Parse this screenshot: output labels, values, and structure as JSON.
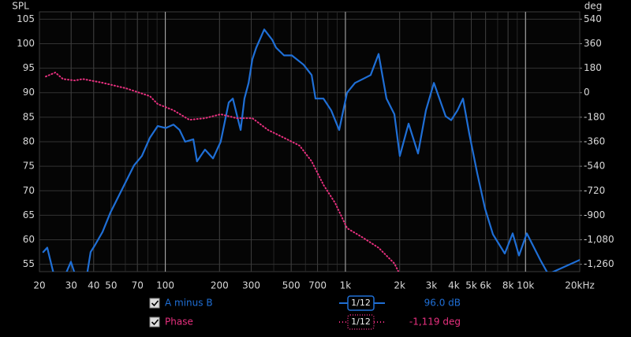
{
  "chart_data": {
    "type": "line",
    "xscale": "log",
    "ylabel": "SPL",
    "y2label": "deg",
    "xlim": [
      20,
      20000
    ],
    "ylim": [
      53.5,
      106.5
    ],
    "y2lim": [
      -1314,
      594
    ],
    "xticks": [
      20,
      30,
      40,
      50,
      70,
      100,
      200,
      300,
      500,
      700,
      {
        "value": 1000,
        "label": "1k"
      },
      {
        "value": 2000,
        "label": "2k"
      },
      {
        "value": 3000,
        "label": "3k"
      },
      {
        "value": 4000,
        "label": "4k"
      },
      {
        "value": 5000,
        "label": "5k"
      },
      {
        "value": 6000,
        "label": "6k"
      },
      {
        "value": 8000,
        "label": "8k"
      },
      {
        "value": 10000,
        "label": "10k"
      },
      {
        "value": 20000,
        "label": "20kHz"
      }
    ],
    "major_x": [
      100,
      1000,
      10000
    ],
    "yticks": [
      55,
      60,
      65,
      70,
      75,
      80,
      85,
      90,
      95,
      100,
      105
    ],
    "y2ticks": [
      540,
      360,
      180,
      0,
      -180,
      -360,
      -540,
      -720,
      -900,
      {
        "value": -1080,
        "label": "-1,080"
      },
      {
        "value": -1260,
        "label": "-1,260"
      }
    ],
    "grid": true,
    "series": [
      {
        "name": "A minus B",
        "color": "#1f6fd6",
        "smoothing": "1/12",
        "readout": "96.0 dB",
        "x": [
          21.0,
          22.1,
          24.0,
          27.6,
          29.9,
          31.5,
          36.6,
          38.5,
          40.5,
          44.8,
          49.6,
          57.7,
          67.1,
          74.1,
          82.1,
          90.7,
          100.4,
          111,
          120,
          129,
          143,
          150,
          166,
          184,
          203,
          225,
          237,
          249,
          262,
          275,
          290,
          304,
          320,
          354,
          392,
          412,
          456,
          504,
          586,
          649,
          682,
          755,
          834,
          923,
          1021,
          1130,
          1250,
          1381,
          1528,
          1691,
          1870,
          2005,
          2243,
          2530,
          2800,
          3098,
          3600,
          3865,
          4190,
          4497,
          4875,
          5392,
          5960,
          6595,
          7670,
          8485,
          9200,
          10170,
          12080,
          13360,
          20000
        ],
        "values": [
          57.5,
          58.4,
          53.0,
          52.5,
          55.5,
          53.0,
          52.5,
          57.5,
          58.8,
          61.6,
          65.6,
          70.4,
          75.2,
          77.1,
          80.8,
          83.2,
          82.8,
          83.5,
          82.4,
          80.0,
          80.5,
          76.0,
          78.4,
          76.6,
          80.0,
          88.0,
          88.8,
          85.6,
          82.4,
          88.8,
          92.0,
          96.8,
          99.2,
          102.9,
          100.8,
          99.2,
          97.6,
          97.6,
          95.7,
          93.6,
          88.8,
          88.8,
          86.4,
          82.4,
          90.0,
          92.0,
          92.8,
          93.6,
          97.9,
          88.8,
          85.6,
          77.1,
          83.7,
          77.6,
          86.4,
          92.0,
          85.2,
          84.4,
          86.4,
          88.8,
          81.6,
          73.6,
          66.4,
          61.1,
          57.2,
          61.3,
          56.8,
          61.3,
          55.9,
          53.0,
          55.9
        ]
      },
      {
        "name": "Phase",
        "color": "#e8307f",
        "smoothing": "1/12",
        "readout": "-1,119 deg",
        "axis": "y2",
        "x": [
          21.7,
          24.5,
          27.0,
          31.5,
          34.8,
          44.8,
          60.6,
          82.1,
          90.7,
          111,
          136,
          166,
          203,
          249,
          304,
          372,
          456,
          557,
          649,
          755,
          877,
          1021,
          1250,
          1528,
          1870,
          1966
        ],
        "values": [
          119,
          148,
          101,
          90,
          101,
          73,
          32,
          -25,
          -83,
          -129,
          -199,
          -187,
          -158,
          -187,
          -187,
          -274,
          -331,
          -389,
          -504,
          -677,
          -810,
          -995,
          -1064,
          -1139,
          -1254,
          -1312
        ]
      }
    ]
  }
}
